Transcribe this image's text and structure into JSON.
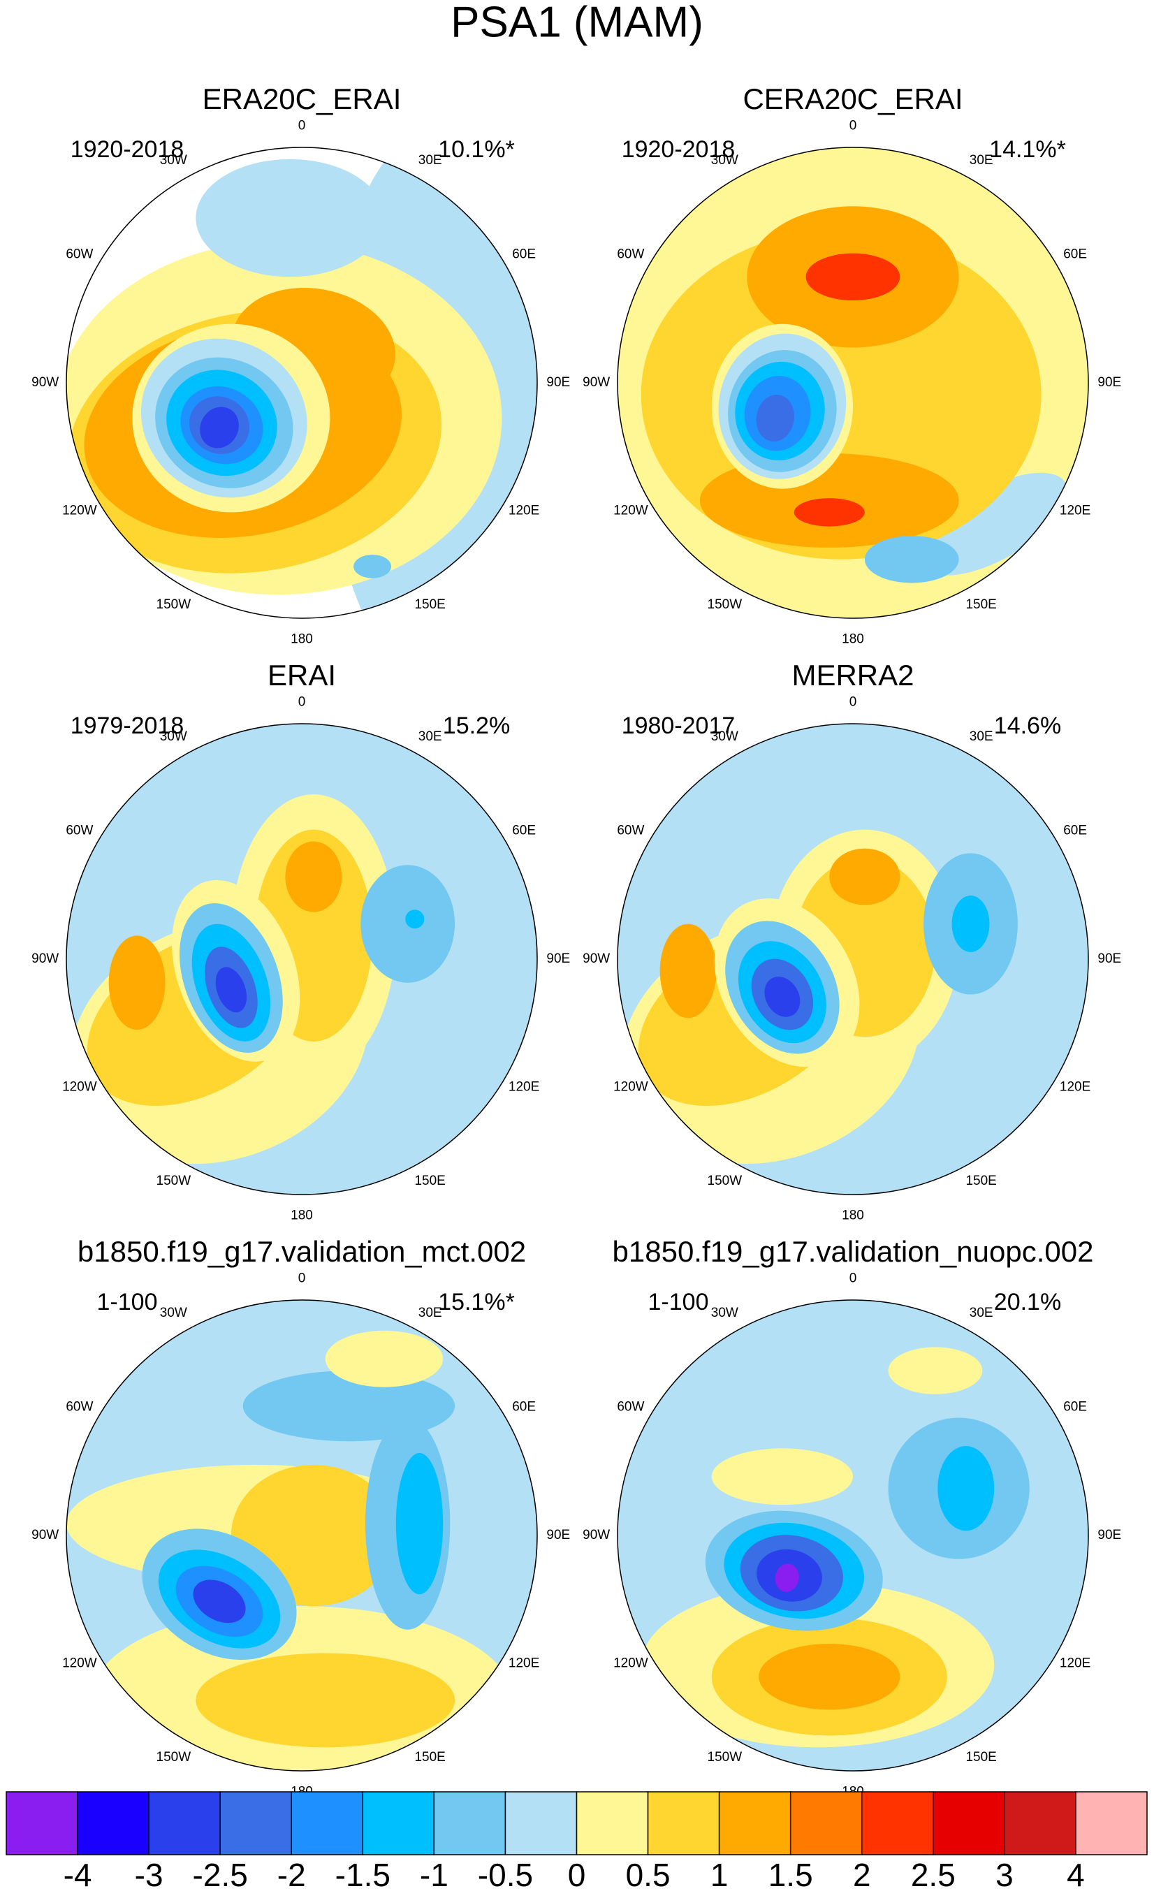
{
  "header": {
    "title": "PSA1 (MAM)"
  },
  "longitude_labels": [
    "0",
    "30E",
    "60E",
    "90E",
    "120E",
    "150E",
    "180",
    "150W",
    "120W",
    "90W",
    "60W",
    "30W"
  ],
  "panels": [
    {
      "title": "ERA20C_ERAI",
      "period": "1920-2018",
      "variance": "10.1%*"
    },
    {
      "title": "CERA20C_ERAI",
      "period": "1920-2018",
      "variance": "14.1%*"
    },
    {
      "title": "ERAI",
      "period": "1979-2018",
      "variance": "15.2%"
    },
    {
      "title": "MERRA2",
      "period": "1980-2017",
      "variance": "14.6%"
    },
    {
      "title": "b1850.f19_g17.validation_mct.002",
      "period": "1-100",
      "variance": "15.1%*"
    },
    {
      "title": "b1850.f19_g17.validation_nuopc.002",
      "period": "1-100",
      "variance": "20.1%"
    }
  ],
  "colorbar": {
    "levels": [
      -4,
      -3,
      -2.5,
      -2,
      -1.5,
      -1,
      -0.5,
      0,
      0.5,
      1,
      1.5,
      2,
      2.5,
      3,
      4
    ],
    "colors": [
      "#8a1ef0",
      "#1a00ff",
      "#2a40ec",
      "#3a6ee6",
      "#1e90ff",
      "#00bfff",
      "#72c8f0",
      "#b4e0f5",
      "#fff796",
      "#ffd530",
      "#ffaa00",
      "#ff7a00",
      "#ff3300",
      "#e60000",
      "#d01a1a",
      "#ffb3b3"
    ]
  }
}
